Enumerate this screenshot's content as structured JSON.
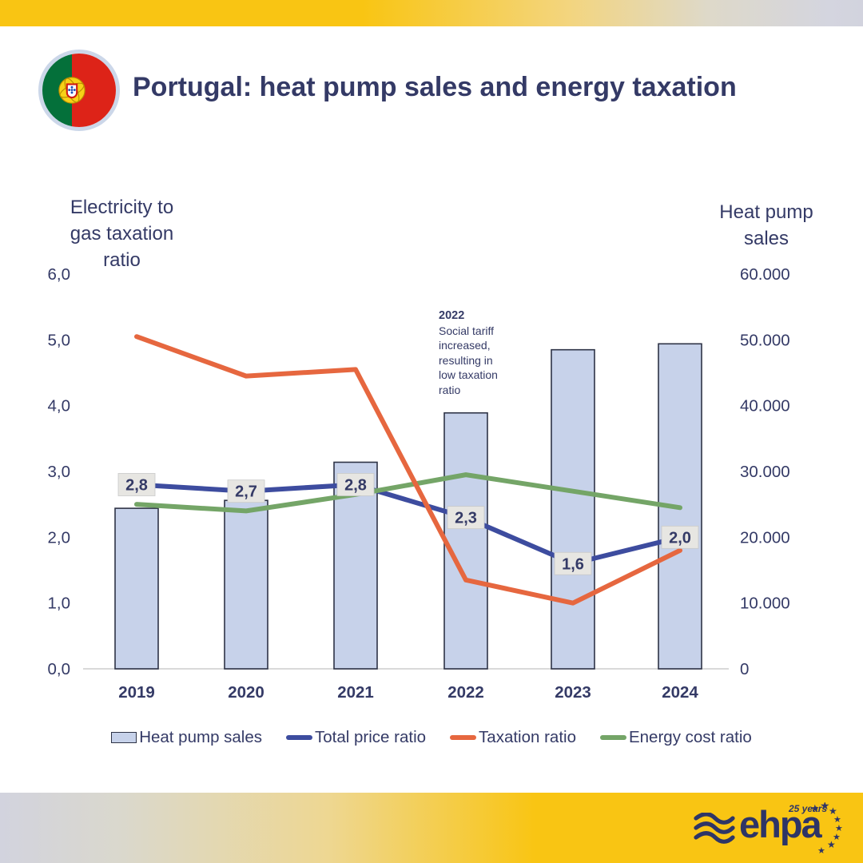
{
  "header": {
    "title": "Portugal: heat pump sales and energy taxation",
    "flag": "portugal"
  },
  "chart_data": {
    "type": "combo-bar-line",
    "categories": [
      "2019",
      "2020",
      "2021",
      "2022",
      "2023",
      "2024"
    ],
    "left_axis": {
      "title_lines": [
        "Electricity to",
        "gas taxation",
        "ratio"
      ],
      "min": 0,
      "max": 6,
      "ticks": [
        "6,0",
        "5,0",
        "4,0",
        "3,0",
        "2,0",
        "1,0",
        "0,0"
      ]
    },
    "right_axis": {
      "title_lines": [
        "Heat pump",
        "sales"
      ],
      "min": 0,
      "max": 60000,
      "ticks": [
        "60.000",
        "50.000",
        "40.000",
        "30.000",
        "20.000",
        "10.000",
        "0"
      ]
    },
    "bar_series": {
      "name": "Heat pump sales",
      "axis": "right",
      "color": "#c7d2ea",
      "border_color": "#2e3346",
      "values": [
        24400,
        25600,
        31400,
        38900,
        48500,
        49400
      ]
    },
    "line_series": [
      {
        "name": "Total price ratio",
        "axis": "left",
        "color": "#3d4c9f",
        "values": [
          2.8,
          2.7,
          2.8,
          2.3,
          1.6,
          2.0
        ],
        "point_labels": [
          "2,8",
          "2,7",
          "2,8",
          "2,3",
          "1,6",
          "2,0"
        ]
      },
      {
        "name": "Taxation ratio",
        "axis": "left",
        "color": "#e6673f",
        "values": [
          5.05,
          4.45,
          4.55,
          1.35,
          1.0,
          1.8
        ]
      },
      {
        "name": "Energy cost ratio",
        "axis": "left",
        "color": "#74a567",
        "values": [
          2.5,
          2.4,
          2.65,
          2.95,
          2.7,
          2.45
        ]
      }
    ],
    "annotation": {
      "year": "2022",
      "lines": [
        "Social tariff",
        "increased,",
        "resulting in",
        "low taxation",
        "ratio"
      ]
    },
    "grid": false,
    "legend_position": "bottom"
  },
  "legend": {
    "items": [
      {
        "label": "Heat pump sales",
        "swatch": "bar",
        "color": "#c7d2ea"
      },
      {
        "label": "Total price ratio",
        "swatch": "line",
        "color": "#3d4c9f"
      },
      {
        "label": "Taxation ratio",
        "swatch": "line",
        "color": "#e6673f"
      },
      {
        "label": "Energy cost ratio",
        "swatch": "line",
        "color": "#74a567"
      }
    ]
  },
  "footer": {
    "brand": "ehpa",
    "anniversary": "25 years"
  },
  "colors": {
    "navy": "#343a66",
    "gold": "#f9c513",
    "silver": "#d2d3de",
    "bar_fill": "#c7d2ea",
    "label_box": "#e7e6e2"
  }
}
